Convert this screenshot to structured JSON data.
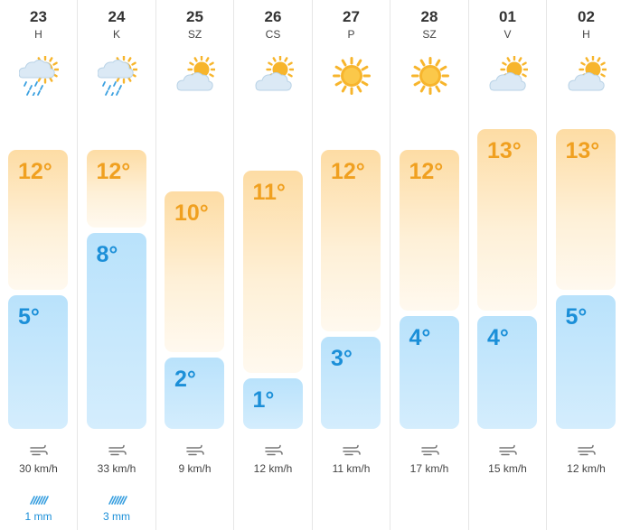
{
  "days": [
    {
      "date": "23",
      "day": "H",
      "icon": "rain-cloud-sun-icon",
      "high": "12°",
      "low": "5°",
      "wind": "30 km/h",
      "rain": "1 mm",
      "high_temp": 12,
      "low_temp": 5
    },
    {
      "date": "24",
      "day": "K",
      "icon": "rain-cloud-sun-icon",
      "high": "12°",
      "low": "8°",
      "wind": "33 km/h",
      "rain": "3 mm",
      "high_temp": 12,
      "low_temp": 8
    },
    {
      "date": "25",
      "day": "SZ",
      "icon": "partly-cloudy-icon",
      "high": "10°",
      "low": "2°",
      "wind": "9 km/h",
      "rain": "",
      "high_temp": 10,
      "low_temp": 2
    },
    {
      "date": "26",
      "day": "CS",
      "icon": "partly-cloudy-icon",
      "high": "11°",
      "low": "1°",
      "wind": "12 km/h",
      "rain": "",
      "high_temp": 11,
      "low_temp": 1
    },
    {
      "date": "27",
      "day": "P",
      "icon": "sun-icon",
      "high": "12°",
      "low": "3°",
      "wind": "11 km/h",
      "rain": "",
      "high_temp": 12,
      "low_temp": 3
    },
    {
      "date": "28",
      "day": "SZ",
      "icon": "sun-icon",
      "high": "12°",
      "low": "4°",
      "wind": "17 km/h",
      "rain": "",
      "high_temp": 12,
      "low_temp": 4
    },
    {
      "date": "01",
      "day": "V",
      "icon": "partly-cloudy-icon",
      "high": "13°",
      "low": "4°",
      "wind": "15 km/h",
      "rain": "",
      "high_temp": 13,
      "low_temp": 4
    },
    {
      "date": "02",
      "day": "H",
      "icon": "partly-cloudy-icon",
      "high": "13°",
      "low": "5°",
      "wind": "12 km/h",
      "rain": "",
      "high_temp": 13,
      "low_temp": 5
    }
  ],
  "colors": {
    "high": "#f0a020",
    "low": "#1b8fd8",
    "sun": "#f7b52c",
    "cloud": "#dbe9f5",
    "rain": "#3aa0e0"
  }
}
